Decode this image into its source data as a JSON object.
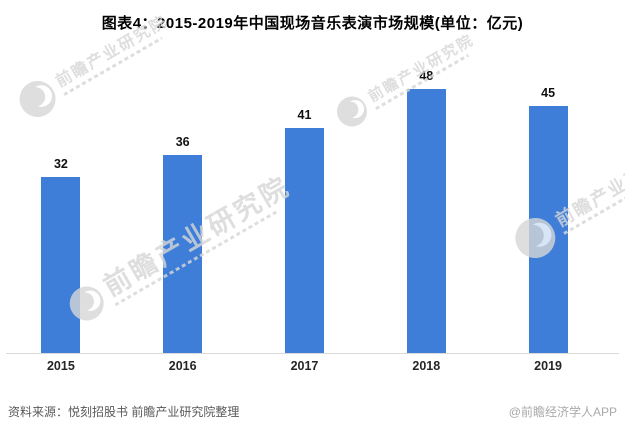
{
  "title": "图表4：2015-2019年中国现场音乐表演市场规模(单位：亿元)",
  "chart_data": {
    "type": "bar",
    "title": "2015-2019年中国现场音乐表演市场规模",
    "unit": "亿元",
    "categories": [
      "2015",
      "2016",
      "2017",
      "2018",
      "2019"
    ],
    "values": [
      32,
      36,
      41,
      48,
      45
    ],
    "xlabel": "",
    "ylabel": "",
    "ylim": [
      0,
      53
    ],
    "grid": false,
    "legend": false,
    "data_labels": true,
    "bar_color": "#3e7ed9"
  },
  "footer": {
    "source": "资料来源：悦刻招股书 前瞻产业研究院整理",
    "credit": "@前瞻经济学人APP"
  },
  "watermark": {
    "text": "前瞻产业研究院"
  },
  "colors": {
    "background": "#ffffff",
    "bar": "#3e7ed9",
    "axis_line": "#d9d9d9",
    "title_text": "#000000",
    "value_label": "#111111",
    "tick_label": "#262626",
    "source_text": "#595959",
    "credit_text": "#a9a9a9",
    "watermark": "#d7d7d7"
  }
}
